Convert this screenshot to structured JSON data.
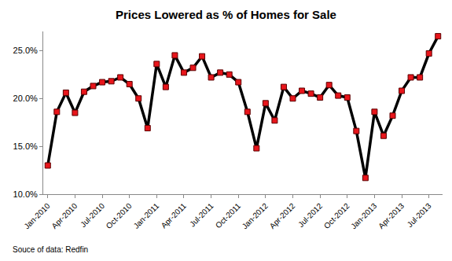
{
  "chart_data": {
    "type": "line",
    "title": "Prices Lowered as % of Homes for Sale",
    "categories": [
      "Jan-2010",
      null,
      null,
      "Apr-2010",
      null,
      null,
      "Jul-2010",
      null,
      null,
      "Oct-2010",
      null,
      null,
      "Jan-2011",
      null,
      null,
      "Apr-2011",
      null,
      null,
      "Jul-2011",
      null,
      null,
      "Oct-2011",
      null,
      null,
      "Jan-2012",
      null,
      null,
      "Apr-2012",
      null,
      null,
      "Jul-2012",
      null,
      null,
      "Oct-2012",
      null,
      null,
      "Jan-2013",
      null,
      null,
      "Apr-2013",
      null,
      null,
      "Jul-2013",
      null
    ],
    "values": [
      13.0,
      18.6,
      20.6,
      18.5,
      20.7,
      21.3,
      21.7,
      21.8,
      22.2,
      21.5,
      20.0,
      16.9,
      23.6,
      21.2,
      24.5,
      22.7,
      23.2,
      24.4,
      22.2,
      22.7,
      22.5,
      21.7,
      18.6,
      14.8,
      19.5,
      17.7,
      21.2,
      20.0,
      20.8,
      20.5,
      20.1,
      21.4,
      20.3,
      20.1,
      16.6,
      11.7,
      18.6,
      16.1,
      18.2,
      20.8,
      22.2,
      22.2,
      24.7,
      26.5
    ],
    "color": "#000000",
    "marker": "square",
    "ylim": [
      10,
      27
    ],
    "yticks": [
      {
        "value": 10,
        "label": "10.0%"
      },
      {
        "value": 15,
        "label": "15.0%"
      },
      {
        "value": 20,
        "label": "20.0%"
      },
      {
        "value": 25,
        "label": "25.0%"
      }
    ],
    "grid": false,
    "annotations": [
      "Souce of data: Redfin"
    ]
  }
}
